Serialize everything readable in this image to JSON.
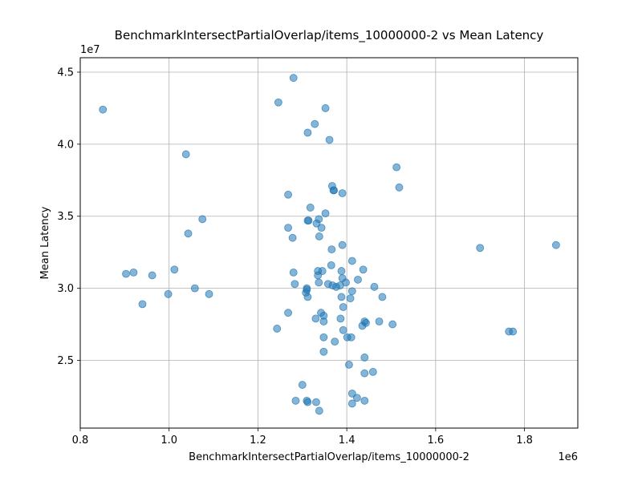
{
  "chart_data": {
    "type": "scatter",
    "title": "BenchmarkIntersectPartialOverlap/items_10000000-2 vs Mean Latency",
    "xlabel": "BenchmarkIntersectPartialOverlap/items_10000000-2",
    "ylabel": "Mean Latency",
    "x_multiplier_label": "1e6",
    "y_multiplier_label": "1e7",
    "xlim": [
      0.8,
      1.92
    ],
    "ylim": [
      2.03,
      4.6
    ],
    "x_ticks": [
      0.8,
      1.0,
      1.2,
      1.4,
      1.6,
      1.8
    ],
    "x_tick_labels": [
      "0.8",
      "1.0",
      "1.2",
      "1.4",
      "1.6",
      "1.8"
    ],
    "y_ticks": [
      2.5,
      3.0,
      3.5,
      4.0,
      4.5
    ],
    "y_tick_labels": [
      "2.5",
      "3.0",
      "3.5",
      "4.0",
      "4.5"
    ],
    "grid": true,
    "marker_color": "#1f77b4",
    "marker_alpha": 0.55,
    "points": [
      [
        0.851,
        4.24
      ],
      [
        1.038,
        3.93
      ],
      [
        1.246,
        4.29
      ],
      [
        1.28,
        4.46
      ],
      [
        1.312,
        4.08
      ],
      [
        1.328,
        4.14
      ],
      [
        1.352,
        4.25
      ],
      [
        1.361,
        4.03
      ],
      [
        1.512,
        3.84
      ],
      [
        1.518,
        3.7
      ],
      [
        1.268,
        3.65
      ],
      [
        1.367,
        3.71
      ],
      [
        1.37,
        3.68
      ],
      [
        1.371,
        3.68
      ],
      [
        1.39,
        3.66
      ],
      [
        1.318,
        3.56
      ],
      [
        1.352,
        3.52
      ],
      [
        1.075,
        3.48
      ],
      [
        1.312,
        3.47
      ],
      [
        1.314,
        3.47
      ],
      [
        1.337,
        3.48
      ],
      [
        1.332,
        3.45
      ],
      [
        1.268,
        3.42
      ],
      [
        1.343,
        3.42
      ],
      [
        1.043,
        3.38
      ],
      [
        1.278,
        3.35
      ],
      [
        1.338,
        3.36
      ],
      [
        1.39,
        3.3
      ],
      [
        1.366,
        3.27
      ],
      [
        1.871,
        3.3
      ],
      [
        1.7,
        3.28
      ],
      [
        1.412,
        3.19
      ],
      [
        1.365,
        3.16
      ],
      [
        1.012,
        3.13
      ],
      [
        0.92,
        3.11
      ],
      [
        0.903,
        3.1
      ],
      [
        0.962,
        3.09
      ],
      [
        1.28,
        3.11
      ],
      [
        1.335,
        3.12
      ],
      [
        1.345,
        3.12
      ],
      [
        1.388,
        3.12
      ],
      [
        1.437,
        3.13
      ],
      [
        1.335,
        3.09
      ],
      [
        1.39,
        3.07
      ],
      [
        1.425,
        3.06
      ],
      [
        1.398,
        3.04
      ],
      [
        1.337,
        3.04
      ],
      [
        1.283,
        3.03
      ],
      [
        1.358,
        3.03
      ],
      [
        1.368,
        3.02
      ],
      [
        1.385,
        3.02
      ],
      [
        1.376,
        3.01
      ],
      [
        1.462,
        3.01
      ],
      [
        1.058,
        3.0
      ],
      [
        1.31,
        3.0
      ],
      [
        1.31,
        2.99
      ],
      [
        1.412,
        2.98
      ],
      [
        0.998,
        2.96
      ],
      [
        1.09,
        2.96
      ],
      [
        1.308,
        2.97
      ],
      [
        1.312,
        2.94
      ],
      [
        1.388,
        2.94
      ],
      [
        1.408,
        2.93
      ],
      [
        1.48,
        2.94
      ],
      [
        0.94,
        2.89
      ],
      [
        1.392,
        2.87
      ],
      [
        1.268,
        2.83
      ],
      [
        1.342,
        2.83
      ],
      [
        1.348,
        2.81
      ],
      [
        1.33,
        2.79
      ],
      [
        1.386,
        2.79
      ],
      [
        1.348,
        2.77
      ],
      [
        1.44,
        2.77
      ],
      [
        1.443,
        2.76
      ],
      [
        1.473,
        2.77
      ],
      [
        1.503,
        2.75
      ],
      [
        1.435,
        2.74
      ],
      [
        1.765,
        2.7
      ],
      [
        1.774,
        2.7
      ],
      [
        1.243,
        2.72
      ],
      [
        1.392,
        2.71
      ],
      [
        1.348,
        2.66
      ],
      [
        1.401,
        2.66
      ],
      [
        1.41,
        2.66
      ],
      [
        1.373,
        2.63
      ],
      [
        1.348,
        2.56
      ],
      [
        1.44,
        2.52
      ],
      [
        1.405,
        2.47
      ],
      [
        1.459,
        2.42
      ],
      [
        1.44,
        2.41
      ],
      [
        1.3,
        2.33
      ],
      [
        1.412,
        2.27
      ],
      [
        1.423,
        2.24
      ],
      [
        1.44,
        2.22
      ],
      [
        1.285,
        2.22
      ],
      [
        1.31,
        2.22
      ],
      [
        1.312,
        2.21
      ],
      [
        1.331,
        2.21
      ],
      [
        1.412,
        2.2
      ],
      [
        1.338,
        2.15
      ]
    ]
  }
}
